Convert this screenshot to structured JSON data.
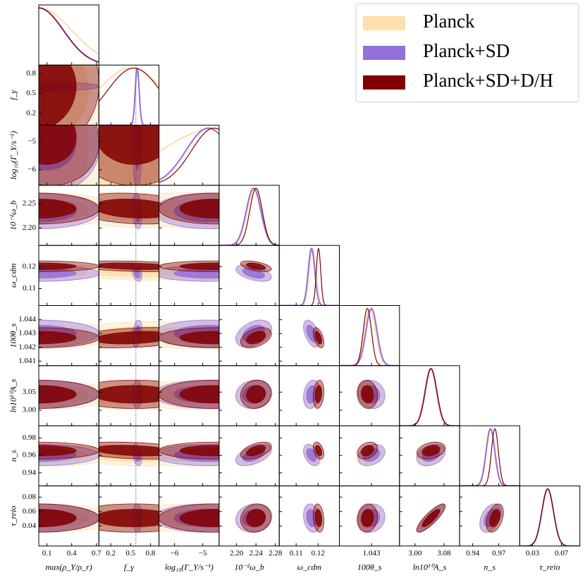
{
  "chart_data": {
    "type": "corner",
    "params": [
      {
        "label": "max(ρ_Y/ρ_r)",
        "lim": [
          0.0,
          0.73
        ],
        "xticks": [
          0.1,
          0.4,
          0.7
        ],
        "yticks": []
      },
      {
        "label": "f_γ",
        "lim": [
          0.02,
          0.93
        ],
        "xticks": [
          0.2,
          0.5,
          0.8
        ],
        "yticks": [
          0.8,
          0.5,
          0.2
        ]
      },
      {
        "label": "log₁₀(Γ_Y/s⁻¹)",
        "lim": [
          -6.55,
          -4.42
        ],
        "xticks": [
          {
            "value": -6,
            "label": "−6"
          },
          {
            "value": -5,
            "label": "−5"
          }
        ],
        "yticks": [
          {
            "value": -5,
            "label": "−5"
          },
          {
            "value": -6,
            "label": "−6"
          }
        ]
      },
      {
        "label": "10⁻²ω_b",
        "lim": [
          2.164,
          2.288
        ],
        "xticks": [
          {
            "value": 2.2,
            "label": "2.20"
          },
          2.24,
          2.28
        ],
        "yticks": [
          2.25,
          {
            "value": 2.2,
            "label": "2.20"
          }
        ]
      },
      {
        "label": "ω_cdm",
        "lim": [
          0.1023,
          0.1297
        ],
        "xticks": [
          0.11,
          0.12
        ],
        "yticks": [
          0.12,
          0.11
        ]
      },
      {
        "label": "100θ_s",
        "lim": [
          1.04067,
          1.04503
        ],
        "xticks": [
          1.043
        ],
        "yticks": [
          1.044,
          1.043,
          1.042,
          1.041
        ]
      },
      {
        "label": "ln10¹⁰A_s",
        "lim": [
          2.957,
          3.123
        ],
        "xticks": [
          {
            "value": 3.0,
            "label": "3.00"
          },
          3.08
        ],
        "yticks": [
          3.05,
          {
            "value": 3.0,
            "label": "3.00"
          }
        ]
      },
      {
        "label": "n_s",
        "lim": [
          0.925,
          0.994
        ],
        "xticks": [
          0.94,
          0.97
        ],
        "yticks": [
          0.98,
          0.96,
          0.94
        ]
      },
      {
        "label": "τ_reio",
        "lim": [
          0.0124,
          0.0954
        ],
        "xticks": [
          0.03,
          0.07
        ],
        "yticks": [
          0.08,
          0.06,
          0.04
        ]
      }
    ],
    "series": [
      {
        "name": "Planck",
        "color": "#fddfae",
        "mean": [
          0.0,
          0.5,
          -4.5,
          2.237,
          0.1175,
          1.0429,
          3.042,
          0.96,
          0.051
        ],
        "sigma": [
          0.4,
          0.5,
          2.0,
          0.015,
          0.0015,
          0.0004,
          0.016,
          0.005,
          0.008
        ]
      },
      {
        "name": "Planck+SD",
        "color": "#9370db",
        "mean": [
          0.0,
          0.6,
          -4.8,
          2.235,
          0.117,
          1.043,
          3.044,
          0.9605,
          0.051
        ],
        "sigma": [
          0.3,
          0.03,
          0.8,
          0.015,
          0.0015,
          0.0004,
          0.016,
          0.005,
          0.008
        ]
      },
      {
        "name": "Planck+SD+D/H",
        "color": "#800000",
        "mean": [
          0.0,
          0.55,
          -4.6,
          2.24,
          0.1202,
          1.0427,
          3.044,
          0.9655,
          0.051
        ],
        "sigma": [
          0.3,
          0.4,
          0.8,
          0.013,
          0.001,
          0.0003,
          0.016,
          0.004,
          0.008
        ]
      }
    ],
    "correlation": [
      [],
      [
        0.1
      ],
      [
        -0.2,
        0.0
      ],
      [
        0.0,
        -0.2,
        0.0
      ],
      [
        0.0,
        -0.3,
        0.0,
        -0.5
      ],
      [
        0.0,
        0.3,
        0.0,
        0.4,
        -0.5
      ],
      [
        0.0,
        0.0,
        0.0,
        0.1,
        0.2,
        -0.1
      ],
      [
        0.0,
        -0.3,
        0.0,
        0.5,
        -0.4,
        0.3,
        0.3
      ],
      [
        0.0,
        0.0,
        0.0,
        0.1,
        -0.2,
        0.1,
        0.85,
        0.4
      ]
    ],
    "vline": 0.58
  }
}
